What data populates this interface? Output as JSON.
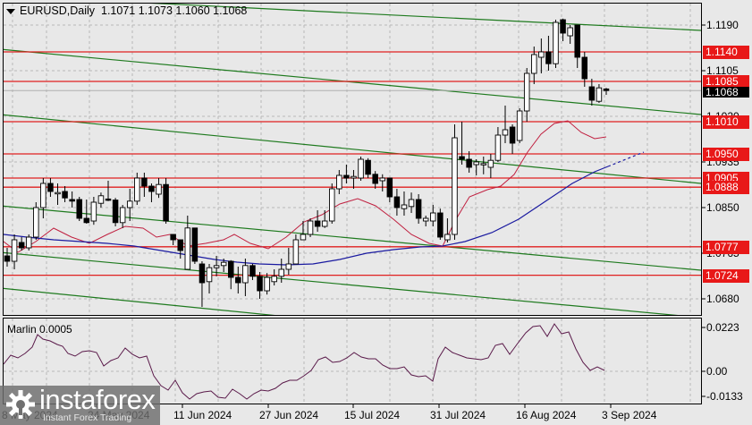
{
  "header": {
    "symbol": "EURUSD,Daily",
    "ohlc": "1.1071 1.1073 1.1060 1.1068"
  },
  "oscillator": {
    "title": "Marlin 0.0005",
    "axis": [
      "0.0223",
      "0.00",
      "-0.0133"
    ]
  },
  "price_axis": {
    "ticks": [
      "1.1190",
      "1.1105",
      "1.1020",
      "1.0935",
      "1.0850",
      "1.0765",
      "1.0680"
    ],
    "levels": [
      "1.1140",
      "1.1085",
      "1.1010",
      "1.0950",
      "1.0905",
      "1.0888",
      "1.0777",
      "1.0724"
    ],
    "current": "1.1068"
  },
  "time_axis": [
    "8 May 2024",
    "24 May 2024",
    "11 Jun 2024",
    "27 Jun 2024",
    "15 Jul 2024",
    "31 Jul 2024",
    "16 Aug 2024",
    "3 Sep 2024"
  ],
  "watermark": {
    "brand": "instaforex",
    "tagline": "Instant Forex Trading"
  },
  "colors": {
    "level_line": "#e02020",
    "channel_line": "#1e7a1e",
    "ma_fast": "#c02040",
    "ma_slow": "#1a1aa0",
    "oscillator": "#5a1a4a",
    "background": "#e8e8e8"
  },
  "chart_data": {
    "type": "candlestick",
    "title": "EURUSD, Daily",
    "last_bar_ohlc": {
      "open": 1.1071,
      "high": 1.1073,
      "low": 1.106,
      "close": 1.1068
    },
    "ylim": [
      1.0655,
      1.1235
    ],
    "y_ticks": [
      1.119,
      1.1105,
      1.102,
      1.0935,
      1.085,
      1.0765,
      1.068
    ],
    "x_ticks": [
      "8 May 2024",
      "24 May 2024",
      "11 Jun 2024",
      "27 Jun 2024",
      "15 Jul 2024",
      "31 Jul 2024",
      "16 Aug 2024",
      "3 Sep 2024"
    ],
    "horizontal_levels": [
      1.114,
      1.1085,
      1.101,
      1.095,
      1.0905,
      1.0888,
      1.0777,
      1.0724
    ],
    "current_price": 1.1068,
    "grid": true,
    "candles_approx": [
      {
        "o": 1.076,
        "h": 1.0775,
        "l": 1.074,
        "c": 1.075
      },
      {
        "o": 1.075,
        "h": 1.08,
        "l": 1.0735,
        "c": 1.079
      },
      {
        "o": 1.0785,
        "h": 1.0795,
        "l": 1.077,
        "c": 1.0775
      },
      {
        "o": 1.0775,
        "h": 1.08,
        "l": 1.077,
        "c": 1.0795
      },
      {
        "o": 1.0795,
        "h": 1.086,
        "l": 1.079,
        "c": 1.085
      },
      {
        "o": 1.085,
        "h": 1.0905,
        "l": 1.083,
        "c": 1.0895
      },
      {
        "o": 1.0895,
        "h": 1.0905,
        "l": 1.087,
        "c": 1.088
      },
      {
        "o": 1.0878,
        "h": 1.0895,
        "l": 1.0855,
        "c": 1.0878
      },
      {
        "o": 1.088,
        "h": 1.089,
        "l": 1.086,
        "c": 1.0868
      },
      {
        "o": 1.0865,
        "h": 1.088,
        "l": 1.085,
        "c": 1.0862
      },
      {
        "o": 1.0865,
        "h": 1.087,
        "l": 1.0825,
        "c": 1.083
      },
      {
        "o": 1.083,
        "h": 1.0865,
        "l": 1.082,
        "c": 1.0822
      },
      {
        "o": 1.0825,
        "h": 1.087,
        "l": 1.0818,
        "c": 1.086
      },
      {
        "o": 1.0858,
        "h": 1.0878,
        "l": 1.085,
        "c": 1.0872
      },
      {
        "o": 1.0866,
        "h": 1.09,
        "l": 1.0862,
        "c": 1.0864
      },
      {
        "o": 1.0864,
        "h": 1.0868,
        "l": 1.0815,
        "c": 1.0822
      },
      {
        "o": 1.0822,
        "h": 1.0855,
        "l": 1.0812,
        "c": 1.085
      },
      {
        "o": 1.085,
        "h": 1.0885,
        "l": 1.0825,
        "c": 1.0862
      },
      {
        "o": 1.0862,
        "h": 1.0915,
        "l": 1.0855,
        "c": 1.0905
      },
      {
        "o": 1.0905,
        "h": 1.0915,
        "l": 1.087,
        "c": 1.089
      },
      {
        "o": 1.089,
        "h": 1.0895,
        "l": 1.086,
        "c": 1.088
      },
      {
        "o": 1.0875,
        "h": 1.0905,
        "l": 1.0868,
        "c": 1.0893
      },
      {
        "o": 1.0893,
        "h": 1.0905,
        "l": 1.082,
        "c": 1.0825
      },
      {
        "o": 1.08,
        "h": 1.08,
        "l": 1.078,
        "c": 1.079
      },
      {
        "o": 1.079,
        "h": 1.079,
        "l": 1.0755,
        "c": 1.077
      },
      {
        "o": 1.0735,
        "h": 1.0835,
        "l": 1.0735,
        "c": 1.0812
      },
      {
        "o": 1.0812,
        "h": 1.0812,
        "l": 1.0745,
        "c": 1.075
      },
      {
        "o": 1.0745,
        "h": 1.075,
        "l": 1.0665,
        "c": 1.071
      },
      {
        "o": 1.0712,
        "h": 1.0745,
        "l": 1.069,
        "c": 1.0738
      },
      {
        "o": 1.0738,
        "h": 1.076,
        "l": 1.0722,
        "c": 1.0742
      },
      {
        "o": 1.0742,
        "h": 1.0755,
        "l": 1.073,
        "c": 1.0748
      },
      {
        "o": 1.075,
        "h": 1.0752,
        "l": 1.0698,
        "c": 1.072
      },
      {
        "o": 1.072,
        "h": 1.074,
        "l": 1.069,
        "c": 1.071
      },
      {
        "o": 1.071,
        "h": 1.0755,
        "l": 1.0685,
        "c": 1.0742
      },
      {
        "o": 1.0742,
        "h": 1.0745,
        "l": 1.0715,
        "c": 1.0722
      },
      {
        "o": 1.0722,
        "h": 1.073,
        "l": 1.068,
        "c": 1.0695
      },
      {
        "o": 1.0695,
        "h": 1.0728,
        "l": 1.0688,
        "c": 1.072
      },
      {
        "o": 1.0712,
        "h": 1.0735,
        "l": 1.0705,
        "c": 1.0722
      },
      {
        "o": 1.0722,
        "h": 1.0755,
        "l": 1.071,
        "c": 1.0735
      },
      {
        "o": 1.0735,
        "h": 1.0775,
        "l": 1.0725,
        "c": 1.0745
      },
      {
        "o": 1.0745,
        "h": 1.08,
        "l": 1.0745,
        "c": 1.079
      },
      {
        "o": 1.079,
        "h": 1.0825,
        "l": 1.079,
        "c": 1.08
      },
      {
        "o": 1.08,
        "h": 1.083,
        "l": 1.0795,
        "c": 1.0825
      },
      {
        "o": 1.0825,
        "h": 1.0845,
        "l": 1.0805,
        "c": 1.0815
      },
      {
        "o": 1.0815,
        "h": 1.0845,
        "l": 1.0812,
        "c": 1.0825
      },
      {
        "o": 1.0825,
        "h": 1.0895,
        "l": 1.082,
        "c": 1.0885
      },
      {
        "o": 1.0885,
        "h": 1.092,
        "l": 1.0875,
        "c": 1.091
      },
      {
        "o": 1.091,
        "h": 1.093,
        "l": 1.0895,
        "c": 1.0905
      },
      {
        "o": 1.0905,
        "h": 1.092,
        "l": 1.0885,
        "c": 1.0908
      },
      {
        "o": 1.0905,
        "h": 1.0945,
        "l": 1.09,
        "c": 1.094
      },
      {
        "o": 1.0938,
        "h": 1.0942,
        "l": 1.0905,
        "c": 1.0912
      },
      {
        "o": 1.0912,
        "h": 1.0918,
        "l": 1.0885,
        "c": 1.0895
      },
      {
        "o": 1.09,
        "h": 1.0912,
        "l": 1.088,
        "c": 1.0905
      },
      {
        "o": 1.0905,
        "h": 1.0905,
        "l": 1.086,
        "c": 1.087
      },
      {
        "o": 1.087,
        "h": 1.0885,
        "l": 1.0835,
        "c": 1.085
      },
      {
        "o": 1.0848,
        "h": 1.088,
        "l": 1.0835,
        "c": 1.0855
      },
      {
        "o": 1.0852,
        "h": 1.0878,
        "l": 1.084,
        "c": 1.0865
      },
      {
        "o": 1.0865,
        "h": 1.0875,
        "l": 1.082,
        "c": 1.083
      },
      {
        "o": 1.0825,
        "h": 1.0835,
        "l": 1.0815,
        "c": 1.083
      },
      {
        "o": 1.0825,
        "h": 1.0855,
        "l": 1.0815,
        "c": 1.084
      },
      {
        "o": 1.084,
        "h": 1.0848,
        "l": 1.079,
        "c": 1.0795
      },
      {
        "o": 1.079,
        "h": 1.083,
        "l": 1.0785,
        "c": 1.08
      },
      {
        "o": 1.08,
        "h": 1.1005,
        "l": 1.079,
        "c": 1.098
      },
      {
        "o": 1.0945,
        "h": 1.101,
        "l": 1.093,
        "c": 1.094
      },
      {
        "o": 1.094,
        "h": 1.0955,
        "l": 1.0915,
        "c": 1.0925
      },
      {
        "o": 1.093,
        "h": 1.094,
        "l": 1.091,
        "c": 1.0935
      },
      {
        "o": 1.093,
        "h": 1.0945,
        "l": 1.0912,
        "c": 1.0932
      },
      {
        "o": 1.0925,
        "h": 1.095,
        "l": 1.0905,
        "c": 1.0938
      },
      {
        "o": 1.0938,
        "h": 1.1,
        "l": 1.0935,
        "c": 1.0985
      },
      {
        "o": 1.0985,
        "h": 1.104,
        "l": 1.097,
        "c": 1.0995
      },
      {
        "o": 1.1,
        "h": 1.1005,
        "l": 1.095,
        "c": 1.097
      },
      {
        "o": 1.0975,
        "h": 1.1035,
        "l": 1.097,
        "c": 1.103
      },
      {
        "o": 1.103,
        "h": 1.111,
        "l": 1.101,
        "c": 1.11
      },
      {
        "o": 1.11,
        "h": 1.115,
        "l": 1.108,
        "c": 1.1135
      },
      {
        "o": 1.113,
        "h": 1.1165,
        "l": 1.11,
        "c": 1.114
      },
      {
        "o": 1.114,
        "h": 1.117,
        "l": 1.1105,
        "c": 1.1118
      },
      {
        "o": 1.1118,
        "h": 1.12,
        "l": 1.111,
        "c": 1.1195
      },
      {
        "o": 1.12,
        "h": 1.1202,
        "l": 1.116,
        "c": 1.1175
      },
      {
        "o": 1.117,
        "h": 1.119,
        "l": 1.1155,
        "c": 1.1185
      },
      {
        "o": 1.119,
        "h": 1.119,
        "l": 1.111,
        "c": 1.113
      },
      {
        "o": 1.113,
        "h": 1.114,
        "l": 1.1075,
        "c": 1.109
      },
      {
        "o": 1.1075,
        "h": 1.109,
        "l": 1.104,
        "c": 1.105
      },
      {
        "o": 1.1048,
        "h": 1.108,
        "l": 1.1045,
        "c": 1.1073
      },
      {
        "o": 1.1071,
        "h": 1.1073,
        "l": 1.106,
        "c": 1.1068
      }
    ],
    "indicators": [
      {
        "name": "Fast MA",
        "color": "#c02040"
      },
      {
        "name": "Slow MA",
        "color": "#1a1aa0"
      },
      {
        "name": "Marlin 0.0005",
        "panel": "oscillator",
        "range": [
          -0.0133,
          0.0223
        ],
        "zero": 0.0
      }
    ]
  }
}
